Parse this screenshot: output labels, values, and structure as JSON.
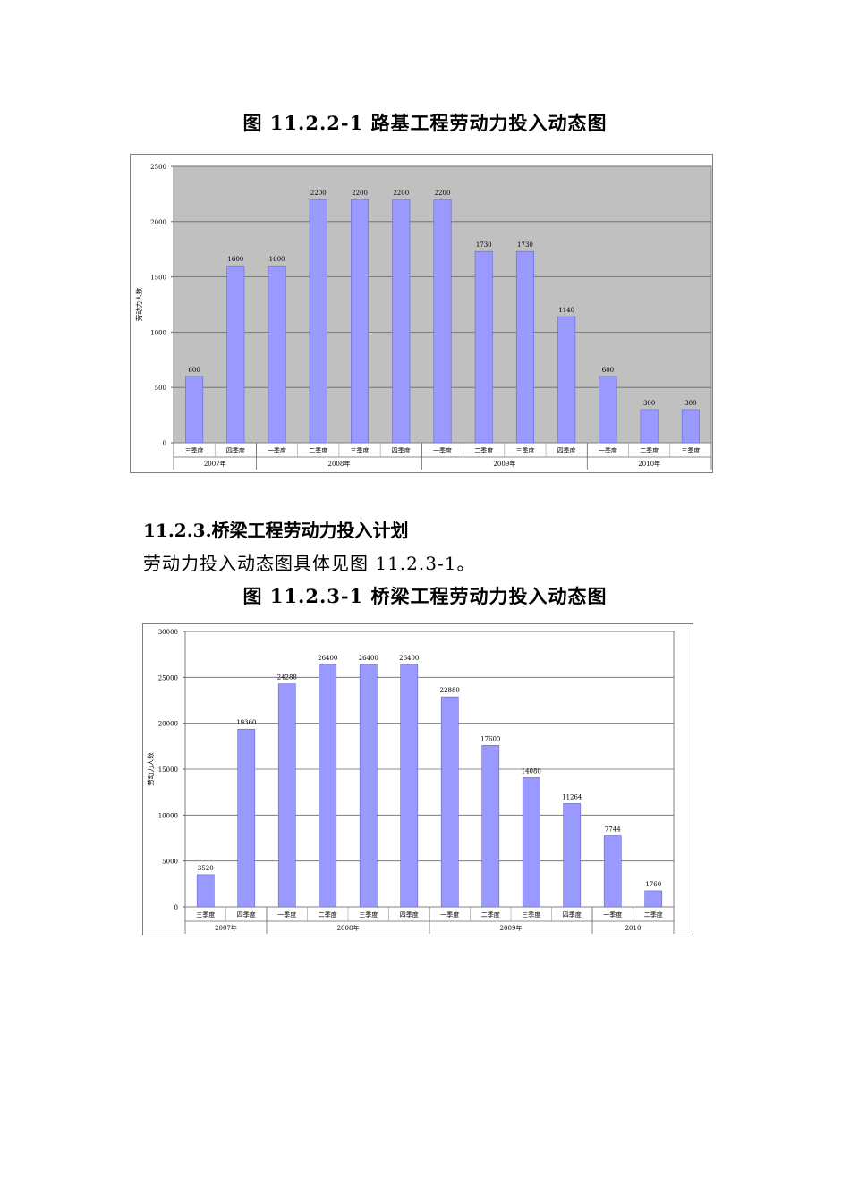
{
  "figure1": {
    "caption": "图 11.2.2-1     路基工程劳动力投入动态图"
  },
  "section": {
    "heading": "11.2.3.桥梁工程劳动力投入计划",
    "paragraph": "劳动力投入动态图具体见图 11.2.3-1。"
  },
  "figure2": {
    "caption": "图 11.2.3-1     桥梁工程劳动力投入动态图"
  },
  "chart_data": [
    {
      "type": "bar",
      "ylabel": "劳动力人数",
      "ylim": [
        0,
        2500
      ],
      "yticks": [
        0,
        500,
        1000,
        1500,
        2000,
        2500
      ],
      "grid": true,
      "plot_background": "#c0c0c0",
      "bar_color": "#9999ff",
      "categories": [
        "三季度",
        "四季度",
        "一季度",
        "二季度",
        "三季度",
        "四季度",
        "一季度",
        "二季度",
        "三季度",
        "四季度",
        "一季度",
        "二季度",
        "三季度"
      ],
      "groups": [
        {
          "label": "2007年",
          "count": 2
        },
        {
          "label": "2008年",
          "count": 4
        },
        {
          "label": "2009年",
          "count": 4
        },
        {
          "label": "2010年",
          "count": 3
        }
      ],
      "values": [
        600,
        1600,
        1600,
        2200,
        2200,
        2200,
        2200,
        1730,
        1730,
        1140,
        600,
        300,
        300
      ]
    },
    {
      "type": "bar",
      "ylabel": "劳动力人数",
      "ylim": [
        0,
        30000
      ],
      "yticks": [
        0,
        5000,
        10000,
        15000,
        20000,
        25000,
        30000
      ],
      "grid": true,
      "plot_background": "#ffffff",
      "bar_color": "#9999ff",
      "categories": [
        "三季度",
        "四季度",
        "一季度",
        "二季度",
        "三季度",
        "四季度",
        "一季度",
        "二季度",
        "三季度",
        "四季度",
        "一季度",
        "二季度"
      ],
      "groups": [
        {
          "label": "2007年",
          "count": 2
        },
        {
          "label": "2008年",
          "count": 4
        },
        {
          "label": "2009年",
          "count": 4
        },
        {
          "label": "2010",
          "count": 2
        }
      ],
      "values": [
        3520,
        19360,
        24288,
        26400,
        26400,
        26400,
        22880,
        17600,
        14080,
        11264,
        7744,
        1760
      ]
    }
  ]
}
